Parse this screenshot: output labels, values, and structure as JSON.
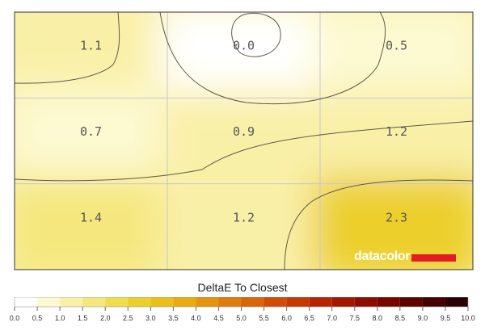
{
  "chart_data": {
    "type": "heatmap",
    "title": "DeltaE To Closest",
    "rows": 3,
    "cols": 3,
    "values": [
      [
        1.1,
        0.0,
        0.5
      ],
      [
        0.7,
        0.9,
        1.2
      ],
      [
        1.4,
        1.2,
        2.3
      ]
    ],
    "value_labels": [
      [
        "1.1",
        "0.0",
        "0.5"
      ],
      [
        "0.7",
        "0.9",
        "1.2"
      ],
      [
        "1.4",
        "1.2",
        "2.3"
      ]
    ],
    "colorbar": {
      "min": 0,
      "max": 10,
      "ticks": [
        "0.0",
        "0.5",
        "1.0",
        "1.5",
        "2.0",
        "2.5",
        "3.0",
        "3.5",
        "4.0",
        "4.5",
        "5.0",
        "5.5",
        "6.0",
        "6.5",
        "7.0",
        "7.5",
        "8.0",
        "8.5",
        "9.0",
        "9.5",
        "10.0"
      ],
      "colors": [
        "#ffffff",
        "#fdf9d2",
        "#f9f0a8",
        "#f5e77e",
        "#f0dc4e",
        "#eccf2b",
        "#eabf1a",
        "#e8ab12",
        "#e4940e",
        "#de7c0b",
        "#d86508",
        "#d04d05",
        "#c53802",
        "#b72400",
        "#a51600",
        "#8f0c00",
        "#780600",
        "#5f0300",
        "#450100",
        "#2a0000",
        "#000000"
      ]
    },
    "grid": true,
    "contours": true,
    "colors": {
      "contour": "#5f5a48",
      "grid": "#c8c8c8",
      "frame": "#333333"
    }
  },
  "brand": {
    "name": "datacolor",
    "bar_color": "#e31b23"
  }
}
